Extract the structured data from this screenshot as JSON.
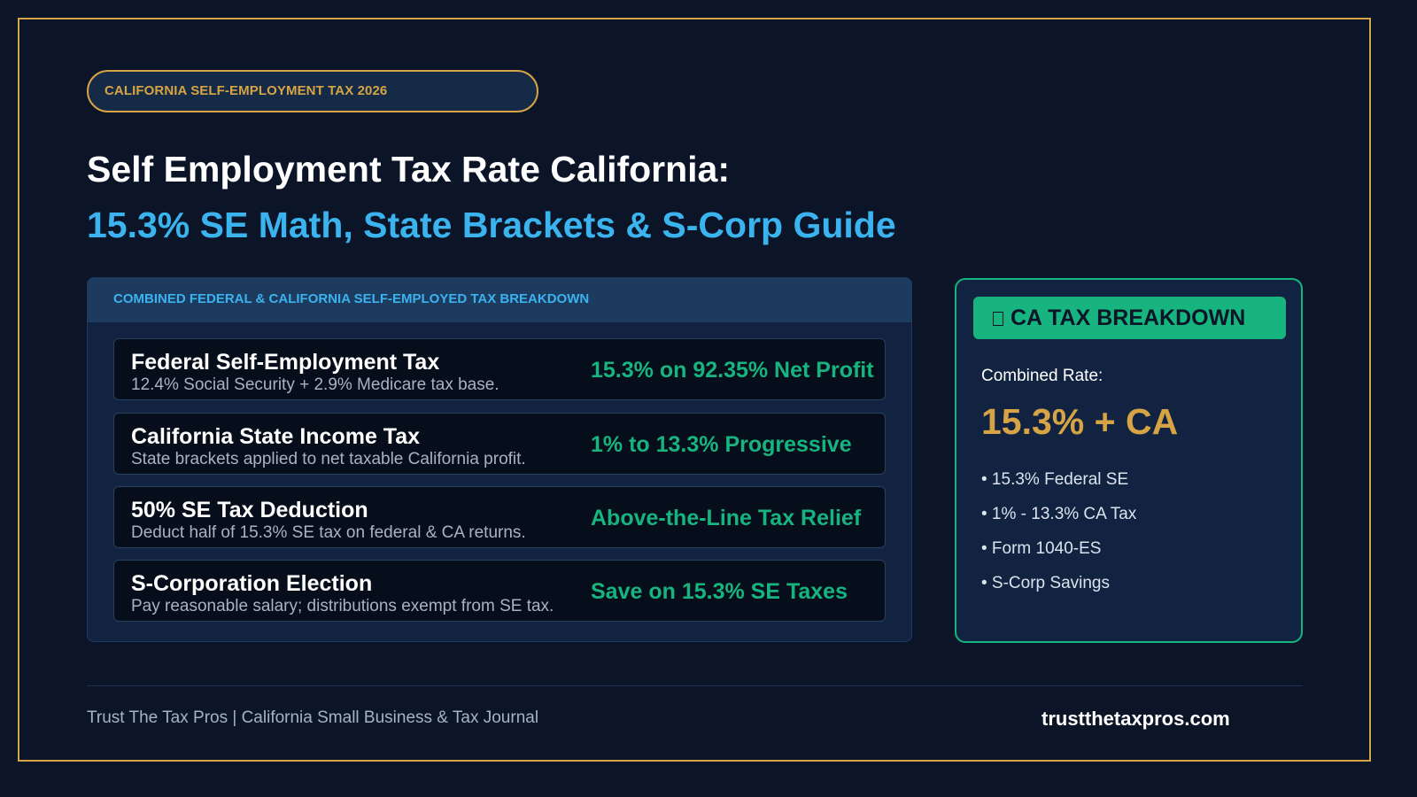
{
  "badge": {
    "label": "CALIFORNIA SELF-EMPLOYMENT TAX 2026"
  },
  "header": {
    "title": "Self Employment Tax Rate California:",
    "subtitle": "15.3% SE Math, State Brackets & S-Corp Guide"
  },
  "breakdown": {
    "heading": "COMBINED FEDERAL & CALIFORNIA SELF-EMPLOYED TAX BREAKDOWN",
    "rows": [
      {
        "title": "Federal Self-Employment Tax",
        "description": "12.4% Social Security + 2.9% Medicare tax base.",
        "value": "15.3% on 92.35% Net Profit"
      },
      {
        "title": "California State Income Tax",
        "description": "State brackets applied to net taxable California profit.",
        "value": "1% to 13.3% Progressive"
      },
      {
        "title": "50% SE Tax Deduction",
        "description": "Deduct half of 15.3% SE tax on federal & CA returns.",
        "value": "Above-the-Line Tax Relief"
      },
      {
        "title": "S-Corporation Election",
        "description": "Pay reasonable salary; distributions exempt from SE tax.",
        "value": "Save on 15.3% SE Taxes"
      }
    ]
  },
  "sidebar": {
    "icon": "document-icon",
    "heading": "CA TAX BREAKDOWN",
    "label": "Combined Rate:",
    "rate": "15.3% + CA",
    "items": [
      "• 15.3% Federal SE",
      "• 1% - 13.3% CA Tax",
      "• Form 1040-ES",
      "• S-Corp Savings"
    ]
  },
  "footer": {
    "publisher": "Trust The Tax Pros | California Small Business & Tax Journal",
    "website": "trustthetaxpros.com"
  },
  "colors": {
    "background": "#0b1527",
    "gold": "#d6a445",
    "blue": "#3bb3ee",
    "green": "#17b47f"
  }
}
